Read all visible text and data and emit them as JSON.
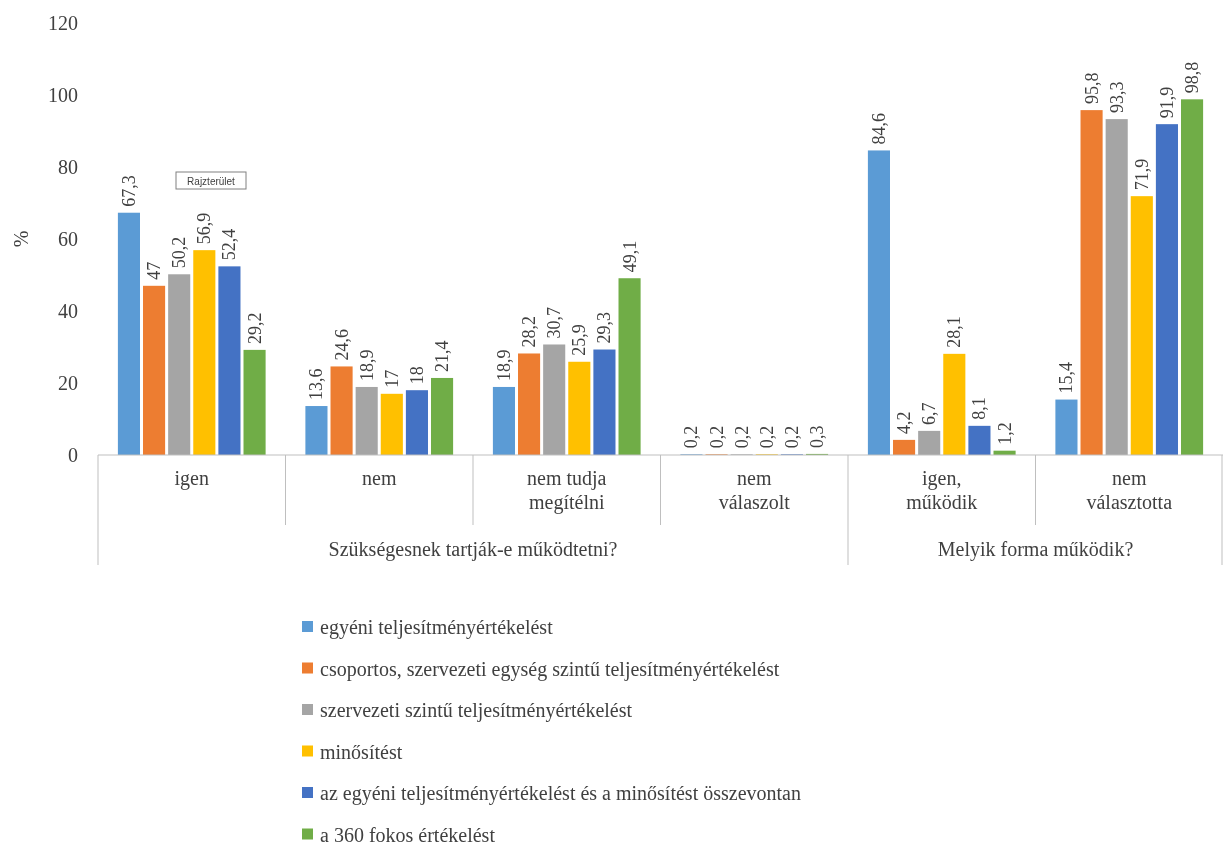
{
  "chart_data": {
    "type": "bar",
    "ylabel": "%",
    "categories": [
      "igen",
      "nem",
      "nem tudja megítélni",
      "nem válaszolt",
      "igen, működik",
      "nem választotta"
    ],
    "series": [
      {
        "name": "egyéni teljesítményértékelést",
        "color": "#5b9bd5",
        "values": [
          67.3,
          13.6,
          18.9,
          0.2,
          84.6,
          15.4
        ],
        "value_labels": [
          "67,3",
          "13,6",
          "18,9",
          "0,2",
          "84,6",
          "15,4"
        ]
      },
      {
        "name": "csoportos, szervezeti egység szintű teljesítményértékelést",
        "color": "#ed7d31",
        "values": [
          47,
          24.6,
          28.2,
          0.2,
          4.2,
          95.8
        ],
        "value_labels": [
          "47",
          "24,6",
          "28,2",
          "0,2",
          "4,2",
          "95,8"
        ]
      },
      {
        "name": "szervezeti szintű teljesítményértékelést",
        "color": "#a5a5a5",
        "values": [
          50.2,
          18.9,
          30.7,
          0.2,
          6.7,
          93.3
        ],
        "value_labels": [
          "50,2",
          "18,9",
          "30,7",
          "0,2",
          "6,7",
          "93,3"
        ]
      },
      {
        "name": "minősítést",
        "color": "#ffc000",
        "values": [
          56.9,
          17,
          25.9,
          0.2,
          28.1,
          71.9
        ],
        "value_labels": [
          "56,9",
          "17",
          "25,9",
          "0,2",
          "28,1",
          "71,9"
        ]
      },
      {
        "name": "az egyéni teljesítményértékelést és a minősítést összevontan",
        "color": "#4472c4",
        "values": [
          52.4,
          18,
          29.3,
          0.2,
          8.1,
          91.9
        ],
        "value_labels": [
          "52,4",
          "18",
          "29,3",
          "0,2",
          "8,1",
          "91,9"
        ]
      },
      {
        "name": "a 360 fokos értékelést",
        "color": "#70ad47",
        "values": [
          29.2,
          21.4,
          49.1,
          0.3,
          1.2,
          98.8
        ],
        "value_labels": [
          "29,2",
          "21,4",
          "49,1",
          "0,3",
          "1,2",
          "98,8"
        ]
      }
    ],
    "ylim": [
      0,
      120
    ],
    "yticks": [
      0,
      20,
      40,
      60,
      80,
      100,
      120
    ],
    "legend": "bottom",
    "annotations": [
      "Szükségesnek tartják-e működtetni?",
      "Melyik forma működik?",
      "Rajzterület"
    ]
  }
}
